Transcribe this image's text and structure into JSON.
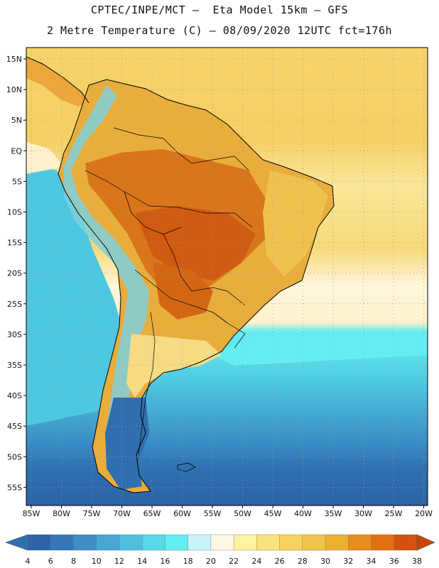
{
  "header": {
    "title_line1": "CPTEC/INPE/MCT –  Eta Model 15km – GFS",
    "title_line2": "2 Metre Temperature (C) – 08/09/2020 12UTC fct=176h"
  },
  "map": {
    "variable": "2 Metre Temperature",
    "units": "C",
    "lat_labels": [
      "15N",
      "10N",
      "5N",
      "EQ",
      "5S",
      "10S",
      "15S",
      "20S",
      "25S",
      "30S",
      "35S",
      "40S",
      "45S",
      "50S",
      "55S"
    ],
    "lon_labels": [
      "85W",
      "80W",
      "75W",
      "70W",
      "65W",
      "60W",
      "55W",
      "50W",
      "45W",
      "40W",
      "35W",
      "30W",
      "25W",
      "20W"
    ]
  },
  "colorbar": {
    "labels": [
      "4",
      "6",
      "8",
      "10",
      "12",
      "14",
      "16",
      "18",
      "20",
      "22",
      "24",
      "26",
      "28",
      "30",
      "32",
      "34",
      "36",
      "38"
    ],
    "colors": [
      "#2e63a8",
      "#3578b8",
      "#3d8fc6",
      "#46a6d4",
      "#4fbfdf",
      "#58d7e7",
      "#62eef3",
      "#c9f4fb",
      "#fff8e3",
      "#fff2a0",
      "#fbe27a",
      "#f5d160",
      "#efc44a",
      "#ecb12c",
      "#e88e1f",
      "#e17013",
      "#d4520d"
    ],
    "low_color": "#2f6fb0",
    "high_color": "#c9440c"
  }
}
